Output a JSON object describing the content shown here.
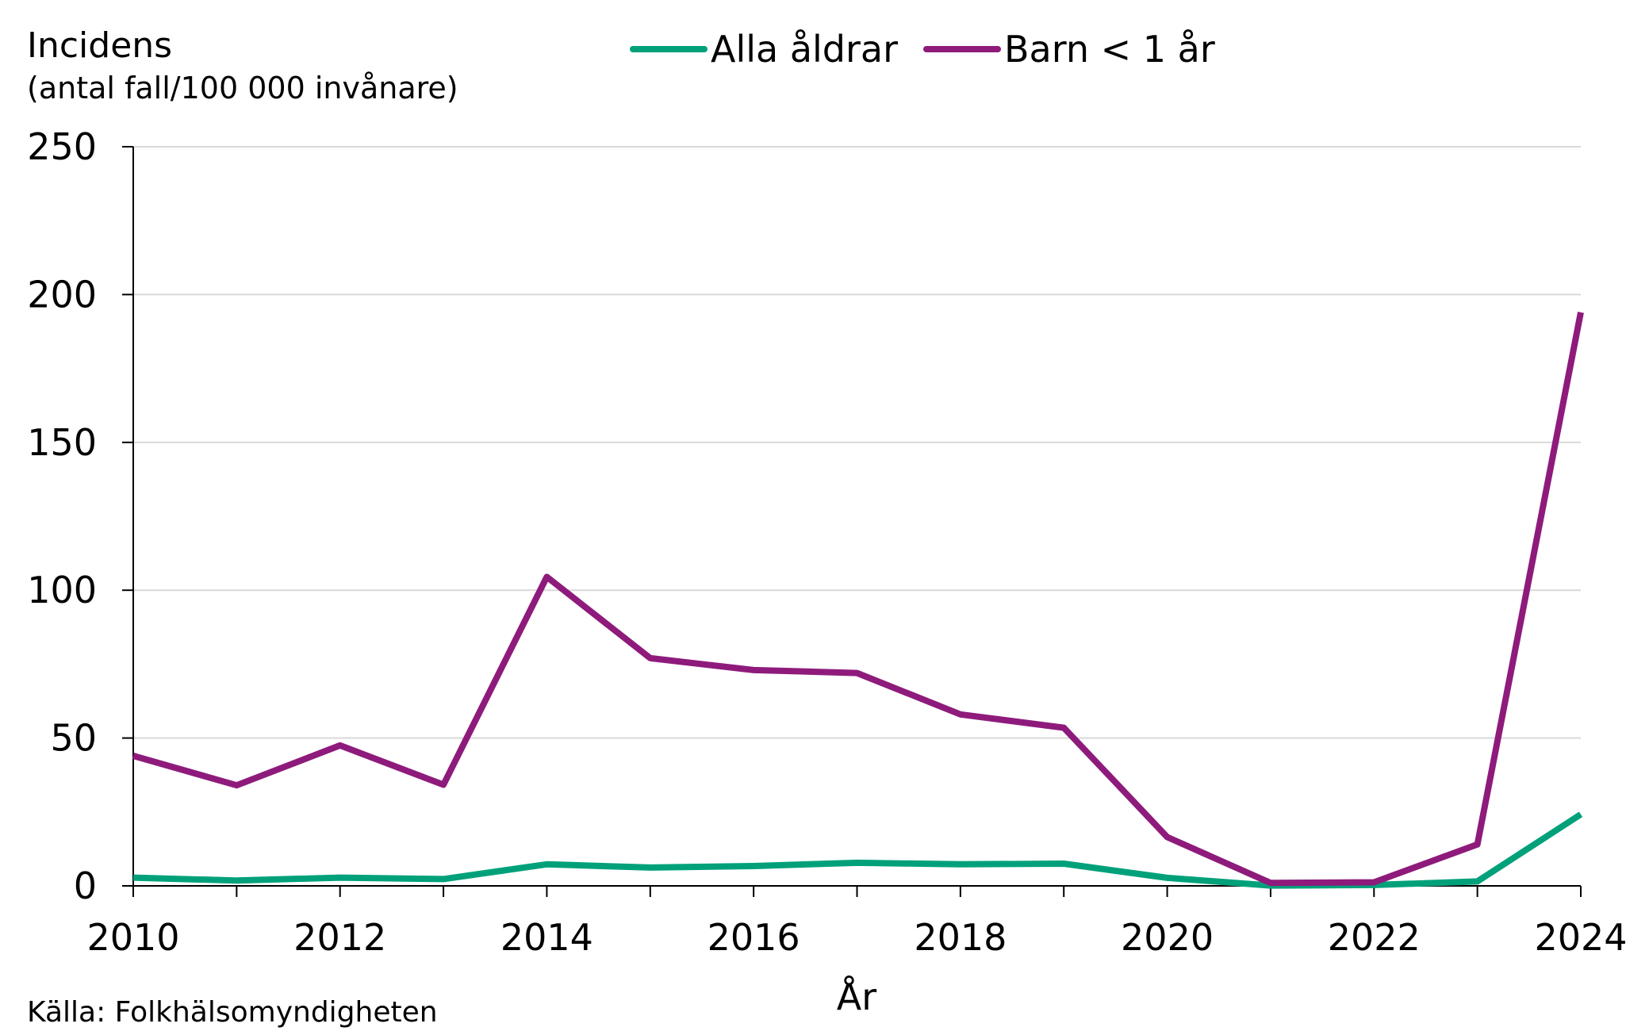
{
  "chart_data": {
    "type": "line",
    "ylabel": [
      "Incidens",
      "(antal fall/100 000 invånare)"
    ],
    "xlabel": "År",
    "source": "Källa: Folkhälsomyndigheten",
    "xlim": [
      2010,
      2024
    ],
    "ylim": [
      0,
      250
    ],
    "xticks": [
      2010,
      2012,
      2014,
      2016,
      2018,
      2020,
      2022,
      2024
    ],
    "yticks": [
      0,
      50,
      100,
      150,
      200,
      250
    ],
    "grid": "horizontal",
    "legend_position": "top-center",
    "x": [
      2010,
      2011,
      2012,
      2013,
      2014,
      2015,
      2016,
      2017,
      2018,
      2019,
      2020,
      2021,
      2022,
      2023,
      2024
    ],
    "series": [
      {
        "name": "Alla åldrar",
        "color": "#00A17A",
        "values": [
          2.8,
          1.8,
          2.8,
          2.3,
          7.3,
          6.2,
          6.7,
          7.8,
          7.3,
          7.5,
          2.7,
          0.1,
          0.3,
          1.5,
          24.2
        ]
      },
      {
        "name": "Barn < 1 år",
        "color": "#8E1B7C",
        "values": [
          44,
          34,
          47.5,
          34.2,
          104.5,
          77,
          73,
          72,
          58,
          53.5,
          16.5,
          1,
          1.2,
          14,
          194
        ]
      }
    ]
  }
}
